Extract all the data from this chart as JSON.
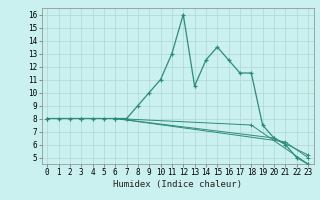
{
  "title": "",
  "xlabel": "Humidex (Indice chaleur)",
  "bg_color": "#caf0f0",
  "line_color": "#2e8b7a",
  "xlim": [
    -0.5,
    23.5
  ],
  "ylim": [
    4.5,
    16.5
  ],
  "xticks": [
    0,
    1,
    2,
    3,
    4,
    5,
    6,
    7,
    8,
    9,
    10,
    11,
    12,
    13,
    14,
    15,
    16,
    17,
    18,
    19,
    20,
    21,
    22,
    23
  ],
  "yticks": [
    5,
    6,
    7,
    8,
    9,
    10,
    11,
    12,
    13,
    14,
    15,
    16
  ],
  "line1_x": [
    0,
    1,
    2,
    3,
    4,
    5,
    6,
    7,
    8,
    9,
    10,
    11,
    12,
    13,
    14,
    15,
    16,
    17,
    18,
    19,
    20,
    21,
    22,
    23
  ],
  "line1_y": [
    8,
    8,
    8,
    8,
    8,
    8,
    8,
    8,
    9,
    10,
    11,
    13,
    16,
    10.5,
    12.5,
    13.5,
    12.5,
    11.5,
    11.5,
    7.5,
    6.5,
    6.0,
    5.0,
    4.5
  ],
  "line2_x": [
    0,
    3,
    6,
    18,
    23
  ],
  "line2_y": [
    8,
    8,
    8,
    7.5,
    4.5
  ],
  "line3_x": [
    0,
    3,
    6,
    21,
    23
  ],
  "line3_y": [
    8,
    8,
    8,
    6.2,
    5.0
  ],
  "line4_x": [
    0,
    3,
    6,
    20,
    23
  ],
  "line4_y": [
    8,
    8,
    8,
    6.5,
    5.2
  ],
  "grid_color": "#b0d8d0",
  "tick_fontsize": 5.5,
  "xlabel_fontsize": 6.5
}
